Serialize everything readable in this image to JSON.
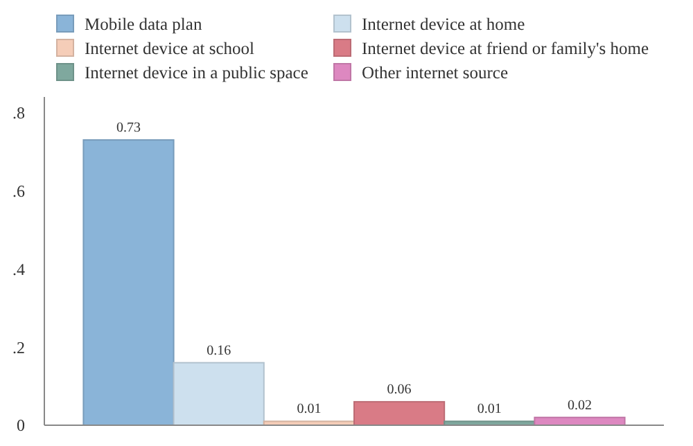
{
  "chart_data": {
    "type": "bar",
    "categories": [
      null
    ],
    "series": [
      {
        "name": "Mobile data plan",
        "color": "#8ab4d8",
        "values": [
          0.73
        ]
      },
      {
        "name": "Internet device at home",
        "color": "#cde0ee",
        "values": [
          0.16
        ]
      },
      {
        "name": "Internet device at school",
        "color": "#f5cdb8",
        "values": [
          0.01
        ]
      },
      {
        "name": "Internet device at friend or family's home",
        "color": "#d97b86",
        "values": [
          0.06
        ]
      },
      {
        "name": "Internet device in a public space",
        "color": "#7fa89e",
        "values": [
          0.01
        ]
      },
      {
        "name": "Other internet source",
        "color": "#dd88c0",
        "values": [
          0.02
        ]
      }
    ],
    "ylim": [
      0,
      0.84
    ],
    "yticks": [
      0,
      {
        "value": 0.2,
        "label": ".2"
      },
      {
        "value": 0.4,
        "label": ".4"
      },
      {
        "value": 0.6,
        "label": ".6"
      },
      {
        "value": 0.8,
        "label": ".8"
      }
    ],
    "data_labels": true,
    "legend": "top",
    "grid": false
  }
}
